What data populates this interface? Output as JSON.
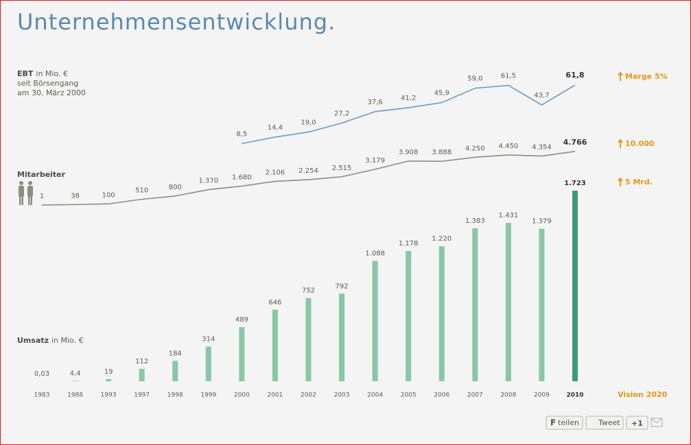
{
  "title": "Unternehmensentwicklung.",
  "chart_data": [
    {
      "type": "line",
      "label": "EBT",
      "unit": "in Mio. €",
      "note": [
        "seit Börsengang",
        "am 30. März 2000"
      ],
      "target": "Marge 5%",
      "color": "#7099bd",
      "values": [
        null,
        null,
        null,
        null,
        null,
        null,
        8.5,
        14.4,
        19,
        27.2,
        37.6,
        41.2,
        45.9,
        59,
        61.5,
        43.7,
        61.8
      ],
      "value_labels": [
        null,
        null,
        null,
        null,
        null,
        null,
        "8,5",
        "14,4",
        "19,0",
        "27,2",
        "37,6",
        "41,2",
        "45,9",
        "59,0",
        "61,5",
        "43,7",
        "61,8"
      ]
    },
    {
      "type": "line",
      "label": "Mitarbeiter",
      "target": "10.000",
      "color": "#8c8c80",
      "values": [
        1,
        38,
        100,
        510,
        800,
        1370,
        1680,
        2106,
        2254,
        2515,
        3179,
        3908,
        3888,
        4250,
        4450,
        4354,
        4766
      ],
      "value_labels": [
        "1",
        "38",
        "100",
        "510",
        "800",
        "1.370",
        "1.680",
        "2.106",
        "2.254",
        "2.515",
        "3.179",
        "3.908",
        "3.888",
        "4.250",
        "4.450",
        "4.354",
        "4.766"
      ]
    },
    {
      "type": "bar",
      "label": "Umsatz",
      "unit": "in Mio. €",
      "target": "5 Mrd.",
      "color": "#8ac6a7",
      "highlight_color": "#3a9d74",
      "highlight_last": true,
      "categories": [
        "1983",
        "1988",
        "1993",
        "1997",
        "1998",
        "1999",
        "2000",
        "2001",
        "2002",
        "2003",
        "2004",
        "2005",
        "2006",
        "2007",
        "2008",
        "2009",
        "2010"
      ],
      "values": [
        0.03,
        4.4,
        19,
        112,
        184,
        314,
        489,
        646,
        752,
        792,
        1088,
        1178,
        1220,
        1383,
        1431,
        1379,
        1723
      ],
      "value_labels": [
        "0,03",
        "4,4",
        "19",
        "112",
        "184",
        "314",
        "489",
        "646",
        "752",
        "792",
        "1.088",
        "1.178",
        "1.220",
        "1.383",
        "1.431",
        "1.379",
        "1.723"
      ]
    }
  ],
  "vision": "Vision 2020",
  "share": [
    "teilen",
    "Tweet",
    "+1"
  ]
}
